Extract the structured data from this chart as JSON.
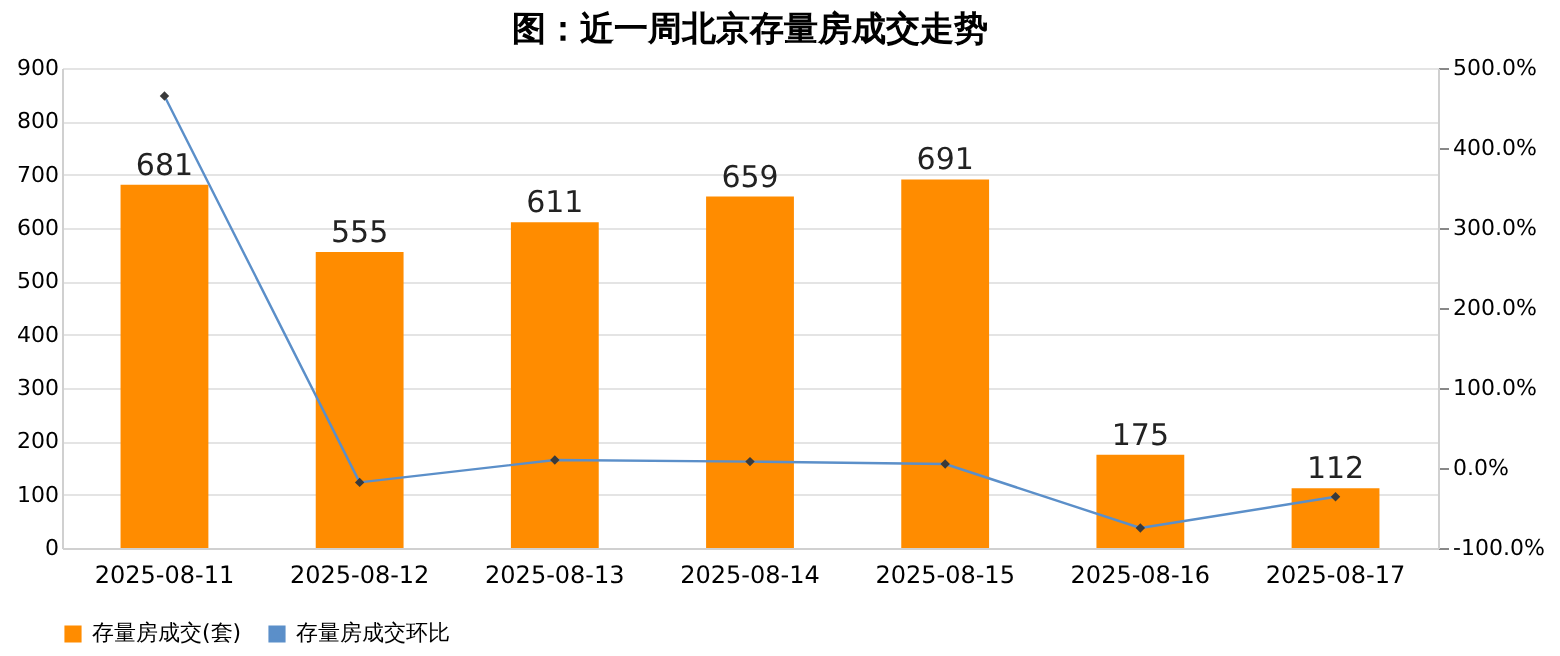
{
  "chart_data": {
    "type": "bar",
    "title": "图：近一周北京存量房成交走势",
    "categories": [
      "2025-08-11",
      "2025-08-12",
      "2025-08-13",
      "2025-08-14",
      "2025-08-15",
      "2025-08-16",
      "2025-08-17"
    ],
    "series": [
      {
        "name": "存量房成交(套)",
        "color": "#ff8c00",
        "values": [
          681,
          555,
          611,
          659,
          691,
          175,
          112
        ],
        "data_labels": true
      },
      {
        "name": "存量房成交环比",
        "type": "line",
        "axis": "y2",
        "color": "#5b8fc9",
        "marker": "diamond",
        "line_style": "solid",
        "values": [
          465,
          -18,
          10,
          8,
          5,
          -75,
          -36
        ]
      }
    ],
    "ylim": [
      0,
      900
    ],
    "yticks": [
      0,
      100,
      200,
      300,
      400,
      500,
      600,
      700,
      800,
      900
    ],
    "y2lim": [
      -100,
      500
    ],
    "y2ticks": [
      {
        "value": -100,
        "label": "-100.0%"
      },
      {
        "value": 0,
        "label": "0.0%"
      },
      {
        "value": 100,
        "label": "100.0%"
      },
      {
        "value": 200,
        "label": "200.0%"
      },
      {
        "value": 300,
        "label": "300.0%"
      },
      {
        "value": 400,
        "label": "400.0%"
      },
      {
        "value": 500,
        "label": "500.0%"
      }
    ],
    "grid": "y",
    "legend": "bottom"
  }
}
